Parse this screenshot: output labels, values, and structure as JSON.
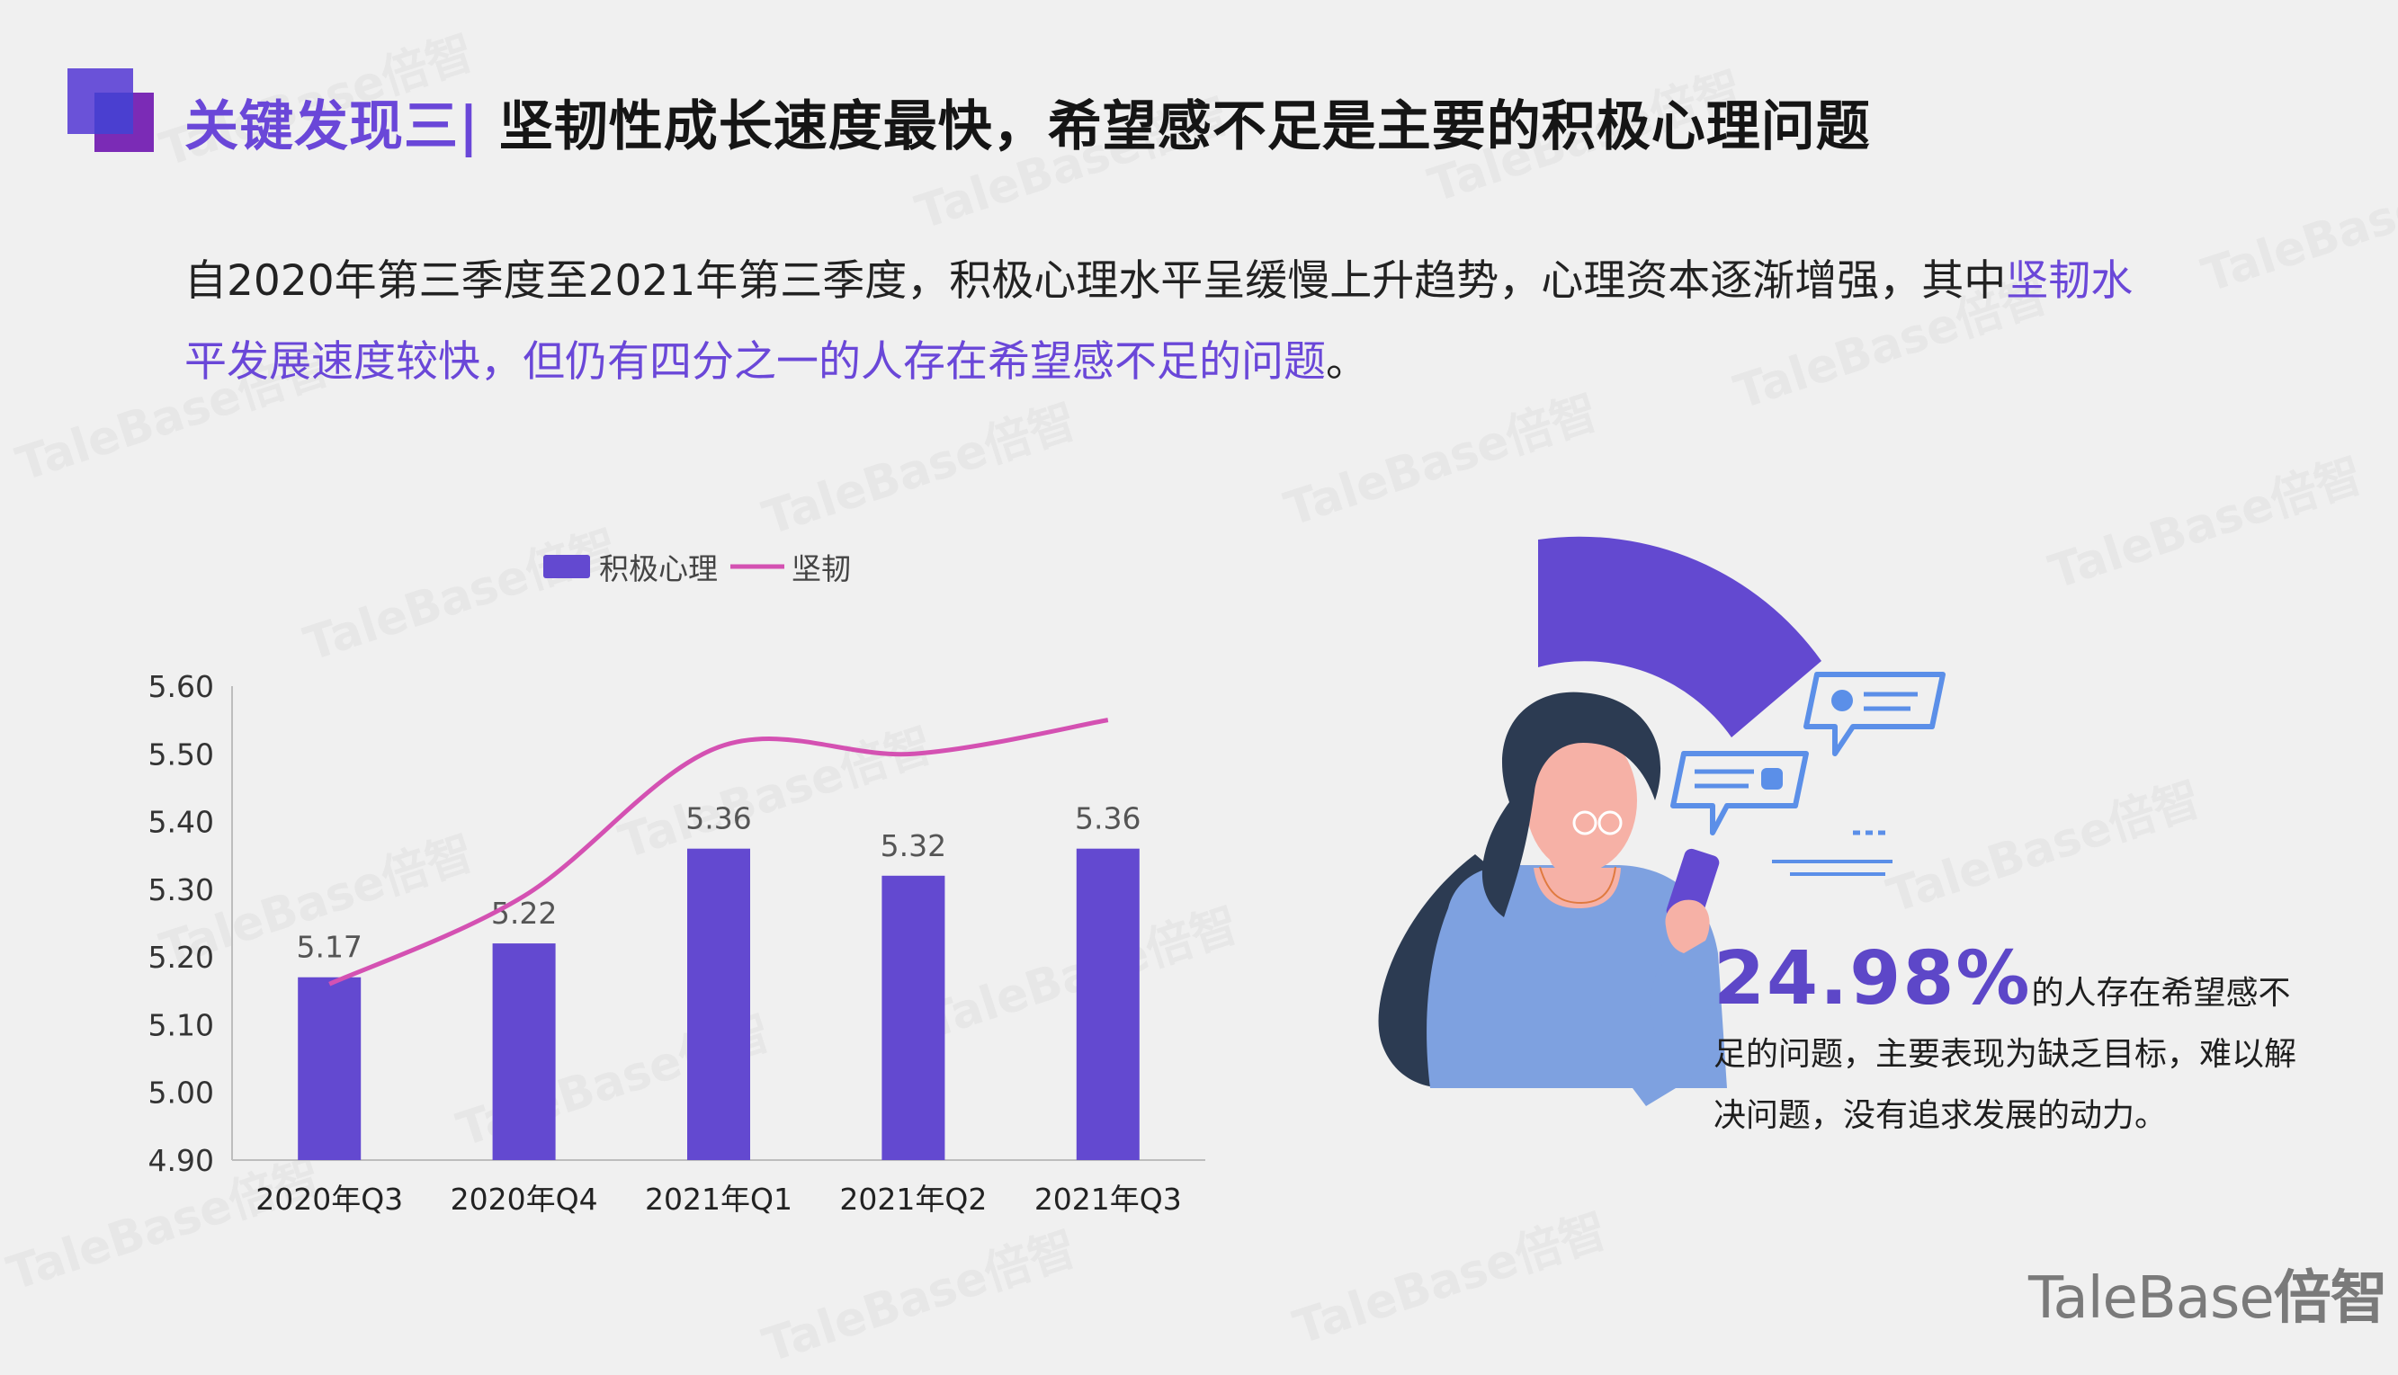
{
  "header": {
    "title_prefix": "关键发现三|",
    "title_main": " 坚韧性成长速度最快，希望感不足是主要的积极心理问题"
  },
  "intro": {
    "text_normal": "自2020年第三季度至2021年第三季度，积极心理水平呈缓慢上升趋势，心理资本逐渐增强，其中",
    "text_highlight": "坚韧水平发展速度较快，但仍有四分之一的人存在希望感不足的问题",
    "text_end": "。"
  },
  "chart_data": {
    "type": "bar",
    "categories": [
      "2020年Q3",
      "2020年Q4",
      "2021年Q1",
      "2021年Q2",
      "2021年Q3"
    ],
    "series": [
      {
        "name": "积极心理",
        "type": "bar",
        "values": [
          5.17,
          5.22,
          5.36,
          5.32,
          5.36
        ],
        "color": "#6349d0"
      },
      {
        "name": "坚韧",
        "type": "line",
        "values": [
          5.16,
          5.29,
          5.51,
          5.5,
          5.55
        ],
        "color": "#d451b2"
      }
    ],
    "data_labels": [
      "5.17",
      "5.22",
      "5.36",
      "5.32",
      "5.36"
    ],
    "y_ticks": [
      "4.90",
      "5.00",
      "5.10",
      "5.20",
      "5.30",
      "5.40",
      "5.50",
      "5.60"
    ],
    "ylim": [
      4.9,
      5.6
    ],
    "legend_position": "top-left",
    "grid": false
  },
  "stat": {
    "percent": "24.98%",
    "text_line1": "的人存在希望感不",
    "text_rest": "足的问题，主要表现为缺乏目标，难以解决问题，没有追求发展的动力。"
  },
  "logo": {
    "text_latin": "TaleBase",
    "text_cn": "倍智"
  },
  "watermark": {
    "text": "TaleBase倍智"
  },
  "illustration": {
    "icon": "woman-with-phone-illustration"
  }
}
